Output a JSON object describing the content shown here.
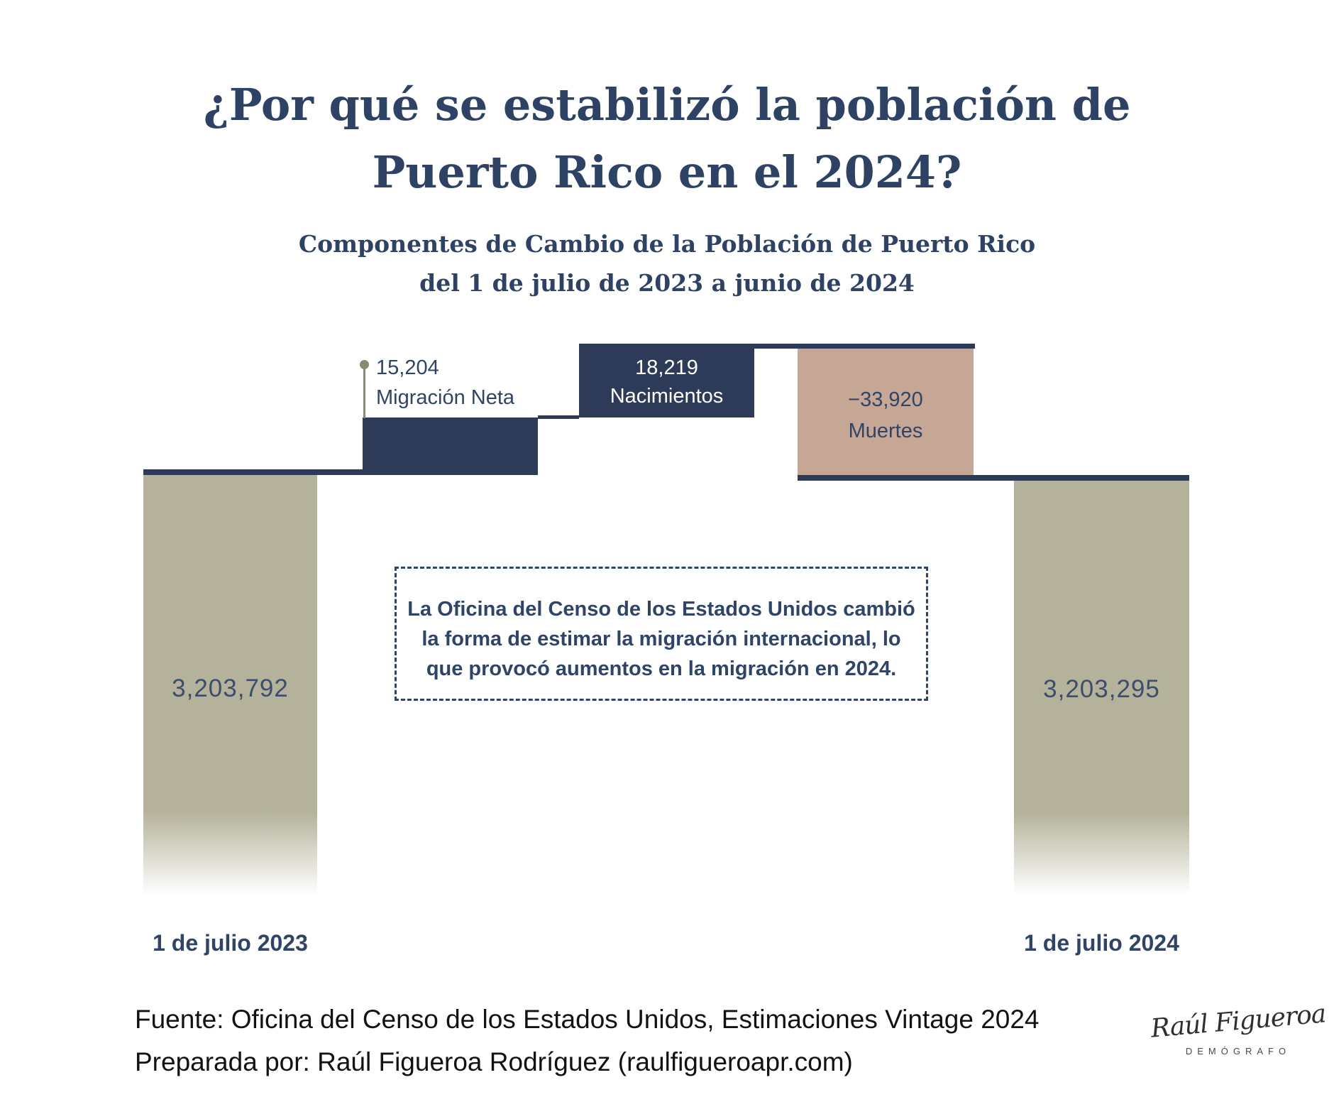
{
  "header": {
    "title_line1": "¿Por qué se estabilizó la población de",
    "title_line2": "Puerto Rico en el 2024?",
    "subtitle_line1": "Componentes de Cambio de la Población de Puerto Rico",
    "subtitle_line2": "del 1 de julio de 2023 a junio de 2024"
  },
  "chart_data": {
    "type": "waterfall",
    "title": "¿Por qué se estabilizó la población de Puerto Rico en el 2024?",
    "subtitle": "Componentes de Cambio de la Población de Puerto Rico del 1 de julio de 2023 a junio de 2024",
    "categories": [
      "1 de julio 2023",
      "Migración Neta",
      "Nacimientos",
      "Muertes",
      "1 de julio 2024"
    ],
    "values": [
      3203792,
      15204,
      18219,
      -33920,
      3203295
    ],
    "value_labels": [
      "3,203,792",
      "15,204",
      "18,219",
      "−33,920",
      "3,203,295"
    ],
    "bar_roles": [
      "total",
      "increase",
      "increase",
      "decrease",
      "total"
    ],
    "legend": "none",
    "grid": false,
    "colors": {
      "total_bar": "#b4b29a",
      "increase_bar": "#2d3b58",
      "decrease_bar": "#c6a795",
      "level_line": "#2d3b58",
      "label_text": "#2f4467",
      "title_text": "#2e4265"
    },
    "annotation": "La Oficina del Censo de los Estados Unidos cambió la forma de estimar la migración internacional, lo que provocó aumentos en la migración en 2024."
  },
  "bars": {
    "start": {
      "value_label": "3,203,792",
      "axis_label": "1 de julio 2023"
    },
    "migration": {
      "value_label": "15,204",
      "label": "Migración Neta"
    },
    "births": {
      "value_label": "18,219",
      "label": "Nacimientos"
    },
    "deaths": {
      "value_label": "−33,920",
      "label": "Muertes"
    },
    "end": {
      "value_label": "3,203,295",
      "axis_label": "1 de julio 2024"
    }
  },
  "note": {
    "lines": [
      "La Oficina del Censo de los Estados Unidos cambió",
      "la forma de estimar la migración internacional, lo",
      "que provocó aumentos en la migración en 2024."
    ]
  },
  "footer": {
    "source": "Fuente: Oficina del Censo de los Estados Unidos, Estimaciones Vintage 2024",
    "prepared_by": "Preparada por: Raúl Figueroa Rodríguez (raulfigueroapr.com)"
  },
  "signature": {
    "name": "Raúl Figueroa",
    "caption": "DEMÓGRAFO"
  }
}
